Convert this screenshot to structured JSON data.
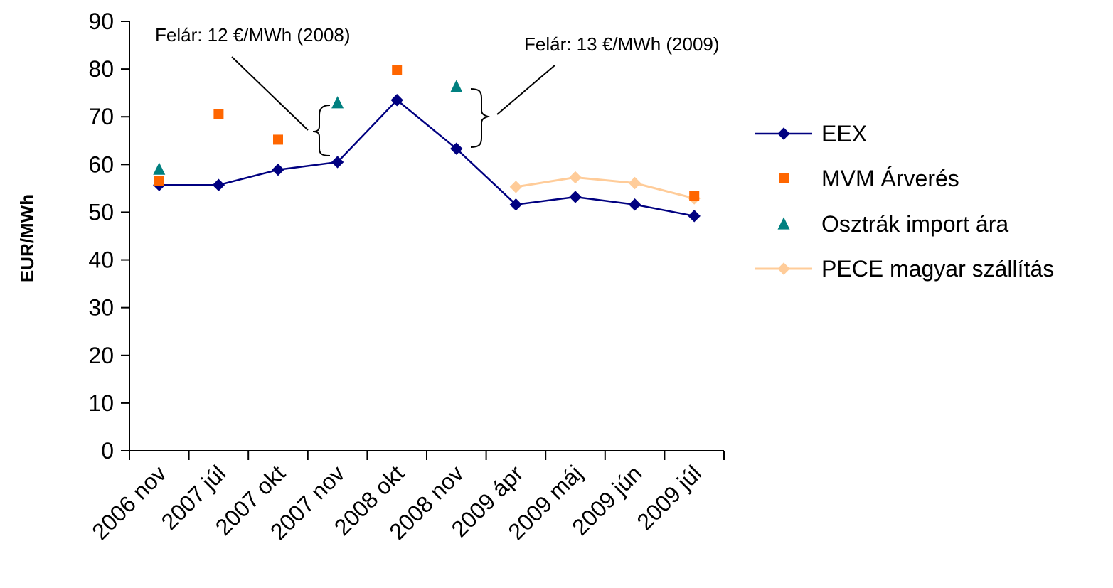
{
  "chart_data": {
    "type": "line",
    "title": "",
    "xlabel": "",
    "ylabel": "EUR/MWh",
    "ylim": [
      0,
      90
    ],
    "yticks": [
      "0",
      "10",
      "20",
      "30",
      "40",
      "50",
      "60",
      "70",
      "80",
      "90"
    ],
    "grid": false,
    "legend_position": "right",
    "categories": [
      "2006 nov",
      "2007 júl",
      "2007 okt",
      "2007 nov",
      "2008 okt",
      "2008 nov",
      "2009 ápr",
      "2009 máj",
      "2009 jún",
      "2009 júl"
    ],
    "series": [
      {
        "name": "EEX",
        "style": "line-diamond",
        "color": "#000080",
        "values": [
          55.7,
          55.7,
          58.9,
          60.5,
          73.5,
          63.3,
          51.6,
          53.2,
          51.6,
          49.2
        ]
      },
      {
        "name": "MVM Árverés",
        "style": "marker-square",
        "color": "#FF6600",
        "values": [
          56.6,
          70.5,
          65.2,
          null,
          79.8,
          null,
          null,
          null,
          null,
          53.4
        ]
      },
      {
        "name": "Osztrák import ára",
        "style": "marker-triangle",
        "color": "#008080",
        "values": [
          59.0,
          null,
          null,
          72.9,
          null,
          76.3,
          null,
          null,
          null,
          null
        ]
      },
      {
        "name": "PECE magyar szállítás",
        "style": "line-diamond",
        "color": "#FFCC99",
        "values": [
          null,
          null,
          null,
          null,
          null,
          null,
          55.3,
          57.3,
          56.1,
          52.9
        ]
      }
    ],
    "annotations": [
      {
        "text": "Felár: 12 €/MWh (2008)"
      },
      {
        "text": "Felár: 13 €/MWh (2009)"
      }
    ]
  }
}
